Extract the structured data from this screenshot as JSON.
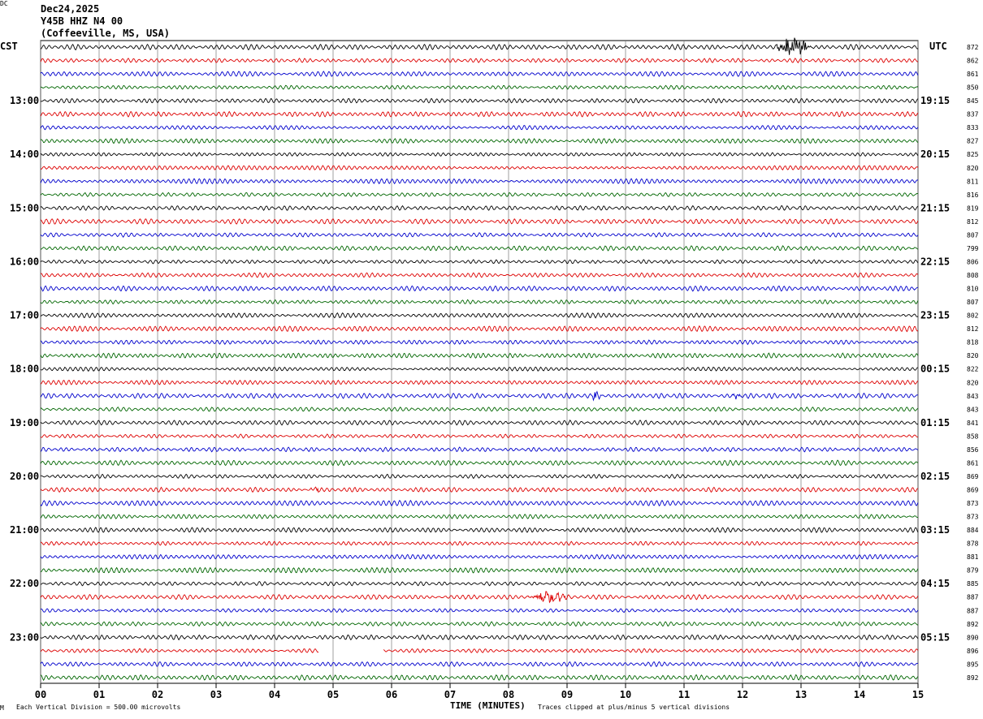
{
  "header": {
    "date": "Dec24,2025",
    "station": "Y45B HHZ N4 00",
    "location": "(Coffeeville, MS, USA)"
  },
  "labels": {
    "left_tz": "CST",
    "right_tz": "UTC",
    "dc": "DC"
  },
  "footer": {
    "scale_note": "Each Vertical Division =  500.00 microvolts",
    "clip_note": "Traces clipped at plus/minus 5 vertical divisions",
    "corner_mark": "M"
  },
  "chart_data": {
    "type": "line",
    "title": "",
    "xlabel": "TIME (MINUTES)",
    "ylabel": "",
    "xlim": [
      0,
      15
    ],
    "x_ticks": [
      "00",
      "01",
      "02",
      "03",
      "04",
      "05",
      "06",
      "07",
      "08",
      "09",
      "10",
      "11",
      "12",
      "13",
      "14",
      "15"
    ],
    "trace_colors": [
      "#000000",
      "#dd0000",
      "#0000cc",
      "#006600"
    ],
    "left_time_labels": [
      "13:00",
      "14:00",
      "15:00",
      "16:00",
      "17:00",
      "18:00",
      "19:00",
      "20:00",
      "21:00",
      "22:00",
      "23:00"
    ],
    "right_time_labels": [
      "19:15",
      "20:15",
      "21:15",
      "22:15",
      "23:15",
      "00:15",
      "01:15",
      "02:15",
      "03:15",
      "04:15",
      "05:15"
    ],
    "dc_offsets": [
      872,
      862,
      861,
      850,
      845,
      837,
      833,
      827,
      825,
      820,
      811,
      816,
      819,
      812,
      807,
      799,
      806,
      808,
      810,
      807,
      802,
      812,
      818,
      820,
      822,
      820,
      843,
      843,
      841,
      858,
      856,
      861,
      869,
      869,
      873,
      873,
      884,
      878,
      881,
      879,
      885,
      887,
      887,
      892,
      890,
      896,
      895,
      892
    ],
    "events": [
      {
        "row": 0,
        "start_min": 12.55,
        "end_min": 13.2,
        "amplitude": "large"
      },
      {
        "row": 26,
        "start_min": 9.4,
        "end_min": 9.6,
        "amplitude": "medium"
      },
      {
        "row": 26,
        "start_min": 11.8,
        "end_min": 12.0,
        "amplitude": "small"
      },
      {
        "row": 33,
        "start_min": 4.6,
        "end_min": 4.8,
        "amplitude": "small"
      },
      {
        "row": 41,
        "start_min": 8.3,
        "end_min": 9.1,
        "amplitude": "medium"
      }
    ],
    "gaps": [
      {
        "row": 45,
        "start_min": 4.75,
        "end_min": 5.85
      }
    ]
  }
}
